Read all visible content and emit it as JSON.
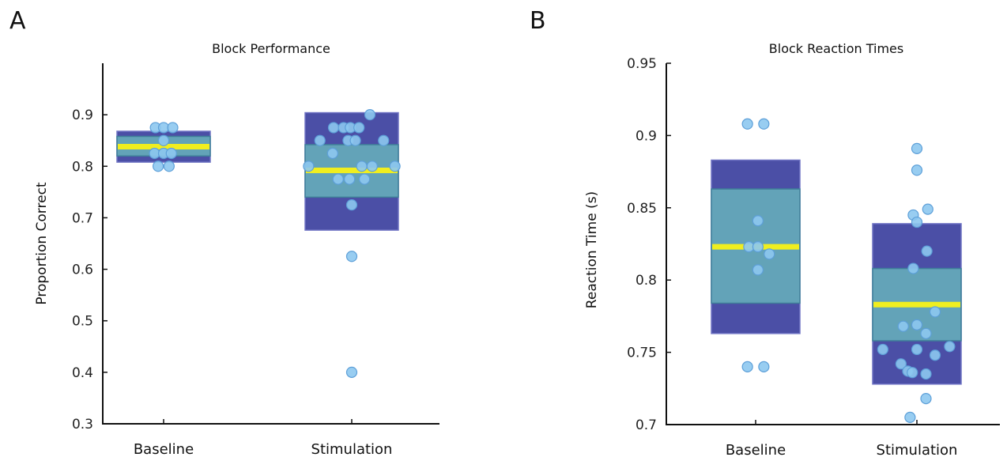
{
  "panels": [
    {
      "letter": "A"
    },
    {
      "letter": "B"
    }
  ],
  "colors": {
    "outer_box": "#4b4fa6",
    "inner_box": "#63a3b8",
    "median": "#f0ee1f",
    "point_fill": "#8dc8ef",
    "point_stroke": "#5d9fd8"
  },
  "chart_data": [
    {
      "type": "scatter",
      "title": "Block Performance",
      "xlabel": "",
      "ylabel": "Proportion Correct",
      "ylim": [
        0.3,
        1.0
      ],
      "yticks": [
        0.3,
        0.4,
        0.5,
        0.6,
        0.7,
        0.8,
        0.9
      ],
      "ytick_labels": [
        "0.3",
        "0.4",
        "0.5",
        "0.6",
        "0.7",
        "0.8",
        "0.9"
      ],
      "categories": [
        "Baseline",
        "Stimulation"
      ],
      "boxes": [
        {
          "category": "Baseline",
          "outer_low": 0.808,
          "outer_high": 0.868,
          "inner_low": 0.82,
          "inner_high": 0.858,
          "median": 0.838
        },
        {
          "category": "Stimulation",
          "outer_low": 0.676,
          "outer_high": 0.904,
          "inner_low": 0.74,
          "inner_high": 0.842,
          "median": 0.792
        }
      ],
      "points": [
        {
          "category": "Baseline",
          "x_offset": -0.18,
          "y": 0.875
        },
        {
          "category": "Baseline",
          "x_offset": 0.0,
          "y": 0.875
        },
        {
          "category": "Baseline",
          "x_offset": 0.2,
          "y": 0.875
        },
        {
          "category": "Baseline",
          "x_offset": 0.0,
          "y": 0.85
        },
        {
          "category": "Baseline",
          "x_offset": -0.2,
          "y": 0.825
        },
        {
          "category": "Baseline",
          "x_offset": 0.0,
          "y": 0.825
        },
        {
          "category": "Baseline",
          "x_offset": 0.17,
          "y": 0.825
        },
        {
          "category": "Baseline",
          "x_offset": -0.12,
          "y": 0.8
        },
        {
          "category": "Baseline",
          "x_offset": 0.12,
          "y": 0.8
        },
        {
          "category": "Stimulation",
          "x_offset": 0.4,
          "y": 0.9
        },
        {
          "category": "Stimulation",
          "x_offset": -0.4,
          "y": 0.875
        },
        {
          "category": "Stimulation",
          "x_offset": -0.18,
          "y": 0.875
        },
        {
          "category": "Stimulation",
          "x_offset": -0.03,
          "y": 0.875
        },
        {
          "category": "Stimulation",
          "x_offset": 0.16,
          "y": 0.875
        },
        {
          "category": "Stimulation",
          "x_offset": -0.7,
          "y": 0.85
        },
        {
          "category": "Stimulation",
          "x_offset": -0.08,
          "y": 0.85
        },
        {
          "category": "Stimulation",
          "x_offset": 0.08,
          "y": 0.85
        },
        {
          "category": "Stimulation",
          "x_offset": 0.7,
          "y": 0.85
        },
        {
          "category": "Stimulation",
          "x_offset": -0.42,
          "y": 0.825
        },
        {
          "category": "Stimulation",
          "x_offset": -0.95,
          "y": 0.8
        },
        {
          "category": "Stimulation",
          "x_offset": 0.22,
          "y": 0.8
        },
        {
          "category": "Stimulation",
          "x_offset": 0.45,
          "y": 0.8
        },
        {
          "category": "Stimulation",
          "x_offset": 0.95,
          "y": 0.8
        },
        {
          "category": "Stimulation",
          "x_offset": -0.3,
          "y": 0.775
        },
        {
          "category": "Stimulation",
          "x_offset": -0.05,
          "y": 0.775
        },
        {
          "category": "Stimulation",
          "x_offset": 0.28,
          "y": 0.775
        },
        {
          "category": "Stimulation",
          "x_offset": 0.0,
          "y": 0.725
        },
        {
          "category": "Stimulation",
          "x_offset": 0.0,
          "y": 0.625
        },
        {
          "category": "Stimulation",
          "x_offset": 0.0,
          "y": 0.4
        }
      ]
    },
    {
      "type": "scatter",
      "title": "Block Reaction Times",
      "xlabel": "",
      "ylabel": "Reaction Time (s)",
      "ylim": [
        0.7,
        0.95
      ],
      "yticks": [
        0.7,
        0.75,
        0.8,
        0.85,
        0.9,
        0.95
      ],
      "ytick_labels": [
        "0.7",
        "0.75",
        "0.8",
        "0.85",
        "0.9",
        "0.95"
      ],
      "categories": [
        "Baseline",
        "Stimulation"
      ],
      "boxes": [
        {
          "category": "Baseline",
          "outer_low": 0.763,
          "outer_high": 0.883,
          "inner_low": 0.784,
          "inner_high": 0.863,
          "median": 0.823
        },
        {
          "category": "Stimulation",
          "outer_low": 0.728,
          "outer_high": 0.839,
          "inner_low": 0.758,
          "inner_high": 0.808,
          "median": 0.783
        }
      ],
      "points": [
        {
          "category": "Baseline",
          "x_offset": -0.18,
          "y": 0.908
        },
        {
          "category": "Baseline",
          "x_offset": 0.18,
          "y": 0.908
        },
        {
          "category": "Baseline",
          "x_offset": 0.05,
          "y": 0.841
        },
        {
          "category": "Baseline",
          "x_offset": -0.15,
          "y": 0.823
        },
        {
          "category": "Baseline",
          "x_offset": 0.05,
          "y": 0.823
        },
        {
          "category": "Baseline",
          "x_offset": 0.3,
          "y": 0.818
        },
        {
          "category": "Baseline",
          "x_offset": 0.05,
          "y": 0.807
        },
        {
          "category": "Baseline",
          "x_offset": -0.18,
          "y": 0.74
        },
        {
          "category": "Baseline",
          "x_offset": 0.18,
          "y": 0.74
        },
        {
          "category": "Stimulation",
          "x_offset": 0.0,
          "y": 0.891
        },
        {
          "category": "Stimulation",
          "x_offset": 0.0,
          "y": 0.876
        },
        {
          "category": "Stimulation",
          "x_offset": -0.08,
          "y": 0.845
        },
        {
          "category": "Stimulation",
          "x_offset": 0.24,
          "y": 0.849
        },
        {
          "category": "Stimulation",
          "x_offset": 0.0,
          "y": 0.84
        },
        {
          "category": "Stimulation",
          "x_offset": 0.22,
          "y": 0.82
        },
        {
          "category": "Stimulation",
          "x_offset": -0.08,
          "y": 0.808
        },
        {
          "category": "Stimulation",
          "x_offset": 0.4,
          "y": 0.778
        },
        {
          "category": "Stimulation",
          "x_offset": 0.0,
          "y": 0.769
        },
        {
          "category": "Stimulation",
          "x_offset": -0.3,
          "y": 0.768
        },
        {
          "category": "Stimulation",
          "x_offset": 0.2,
          "y": 0.763
        },
        {
          "category": "Stimulation",
          "x_offset": -0.75,
          "y": 0.752
        },
        {
          "category": "Stimulation",
          "x_offset": 0.0,
          "y": 0.752
        },
        {
          "category": "Stimulation",
          "x_offset": 0.72,
          "y": 0.754
        },
        {
          "category": "Stimulation",
          "x_offset": 0.4,
          "y": 0.748
        },
        {
          "category": "Stimulation",
          "x_offset": -0.35,
          "y": 0.742
        },
        {
          "category": "Stimulation",
          "x_offset": -0.2,
          "y": 0.737
        },
        {
          "category": "Stimulation",
          "x_offset": -0.1,
          "y": 0.736
        },
        {
          "category": "Stimulation",
          "x_offset": 0.2,
          "y": 0.735
        },
        {
          "category": "Stimulation",
          "x_offset": 0.2,
          "y": 0.718
        },
        {
          "category": "Stimulation",
          "x_offset": -0.15,
          "y": 0.705
        }
      ]
    }
  ]
}
